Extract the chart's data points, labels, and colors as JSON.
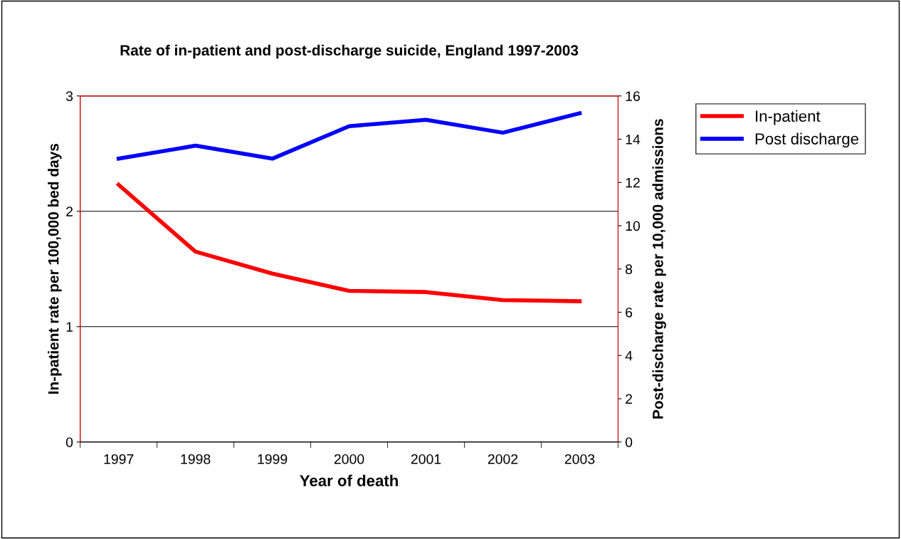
{
  "chart_data": {
    "type": "line",
    "title": "Rate of in-patient and post-discharge suicide, England 1997-2003",
    "categories": [
      "1997",
      "1998",
      "1999",
      "2000",
      "2001",
      "2002",
      "2003"
    ],
    "xlabel": "Year of death",
    "ylabel": "In-patient rate per 100,000 bed days",
    "y2label": "Post-discharge rate per 10,000 admissions",
    "series": [
      {
        "name": "In-patient",
        "color": "#ff0000",
        "values": [
          2.23,
          1.65,
          1.46,
          1.31,
          1.3,
          1.23,
          1.22
        ]
      },
      {
        "name": "Post discharge",
        "color": "#0000ff",
        "axis": "y2",
        "values": [
          13.1,
          13.7,
          13.1,
          14.6,
          14.9,
          14.3,
          15.2
        ]
      }
    ],
    "ylim": [
      0,
      3
    ],
    "yticks": [
      0,
      1,
      2,
      3
    ],
    "y2lim": [
      0,
      16
    ],
    "y2ticks": [
      0,
      2,
      4,
      6,
      8,
      10,
      12,
      14,
      16
    ],
    "grid": "y",
    "legend": "top right",
    "line_style": "solid"
  }
}
